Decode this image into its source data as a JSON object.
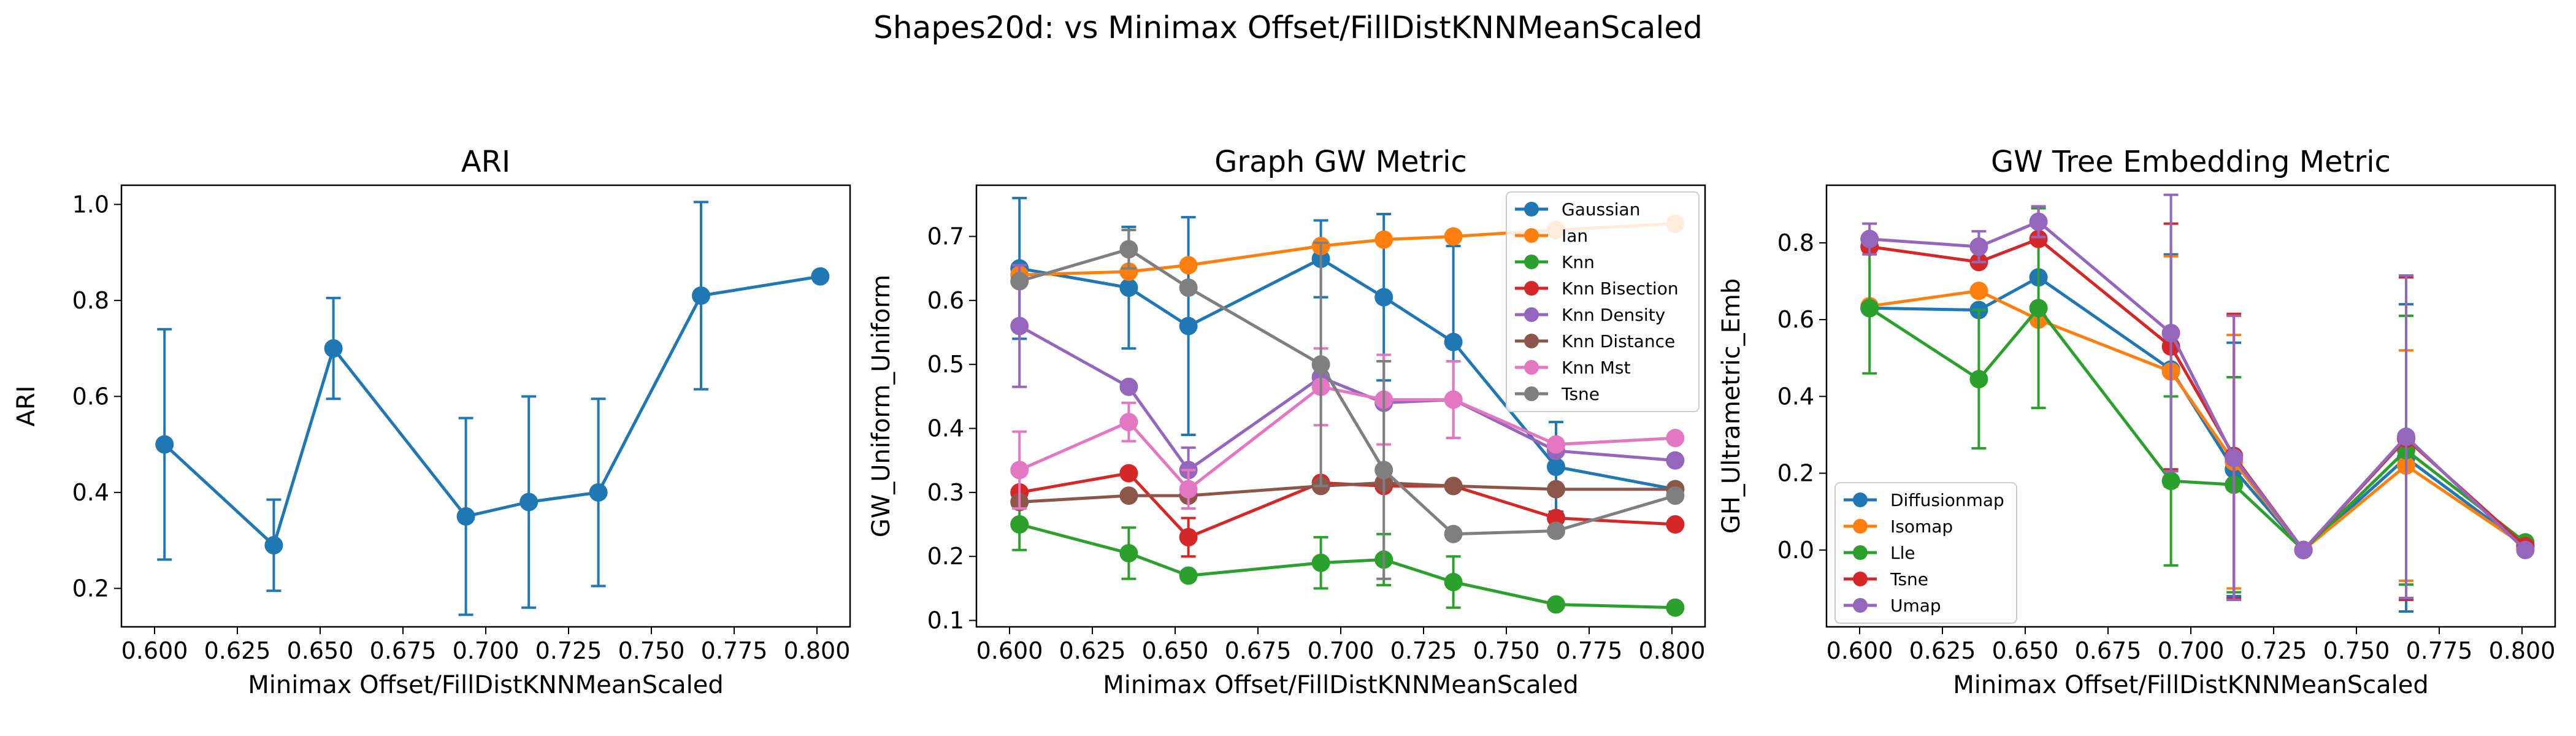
{
  "figure": {
    "suptitle": "Shapes20d: vs Minimax Offset/FillDistKNNMeanScaled"
  },
  "chart_data": [
    {
      "type": "line",
      "title": "ARI",
      "xlabel": "Minimax Offset/FillDistKNNMeanScaled",
      "ylabel": "ARI",
      "xlim": [
        0.59,
        0.81
      ],
      "ylim": [
        0.12,
        1.04
      ],
      "xticks": [
        0.6,
        0.625,
        0.65,
        0.675,
        0.7,
        0.725,
        0.75,
        0.775,
        0.8
      ],
      "xtick_labels": [
        "0.600",
        "0.625",
        "0.650",
        "0.675",
        "0.700",
        "0.725",
        "0.750",
        "0.775",
        "0.800"
      ],
      "yticks": [
        0.2,
        0.4,
        0.6,
        0.8,
        1.0
      ],
      "ytick_labels": [
        "0.2",
        "0.4",
        "0.6",
        "0.8",
        "1.0"
      ],
      "grid": false,
      "legend": null,
      "x": [
        0.603,
        0.636,
        0.654,
        0.694,
        0.713,
        0.734,
        0.765,
        0.801
      ],
      "series": [
        {
          "color": "#1f77b4",
          "values": [
            0.5,
            0.29,
            0.7,
            0.35,
            0.38,
            0.4,
            0.81,
            0.85
          ],
          "err": [
            0.24,
            0.095,
            0.105,
            0.205,
            0.22,
            0.195,
            0.195,
            0
          ]
        }
      ]
    },
    {
      "type": "line",
      "title": "Graph GW Metric",
      "xlabel": "Minimax Offset/FillDistKNNMeanScaled",
      "ylabel": "GW_Uniform_Uniform",
      "xlim": [
        0.59,
        0.81
      ],
      "ylim": [
        0.09,
        0.78
      ],
      "xticks": [
        0.6,
        0.625,
        0.65,
        0.675,
        0.7,
        0.725,
        0.75,
        0.775,
        0.8
      ],
      "xtick_labels": [
        "0.600",
        "0.625",
        "0.650",
        "0.675",
        "0.700",
        "0.725",
        "0.750",
        "0.775",
        "0.800"
      ],
      "yticks": [
        0.1,
        0.2,
        0.3,
        0.4,
        0.5,
        0.6,
        0.7
      ],
      "ytick_labels": [
        "0.1",
        "0.2",
        "0.3",
        "0.4",
        "0.5",
        "0.6",
        "0.7"
      ],
      "grid": false,
      "legend": "top-right",
      "x": [
        0.603,
        0.636,
        0.654,
        0.694,
        0.713,
        0.734,
        0.765,
        0.801
      ],
      "series": [
        {
          "name": "Gaussian",
          "color": "#1f77b4",
          "values": [
            0.65,
            0.62,
            0.56,
            0.665,
            0.605,
            0.535,
            0.34,
            0.305
          ],
          "err": [
            0.11,
            0.095,
            0.17,
            0.06,
            0.13,
            0.15,
            0.07,
            0
          ]
        },
        {
          "name": "Ian",
          "color": "#ff7f0e",
          "values": [
            0.64,
            0.645,
            0.655,
            0.685,
            0.695,
            0.7,
            0.71,
            0.72
          ],
          "err": [
            0,
            0,
            0,
            0,
            0,
            0,
            0,
            0
          ]
        },
        {
          "name": "Knn",
          "color": "#2ca02c",
          "values": [
            0.25,
            0.205,
            0.17,
            0.19,
            0.195,
            0.16,
            0.125,
            0.12
          ],
          "err": [
            0.04,
            0.04,
            0,
            0.04,
            0.04,
            0.04,
            0,
            0
          ]
        },
        {
          "name": "Knn Bisection",
          "color": "#d62728",
          "values": [
            0.3,
            0.33,
            0.23,
            0.315,
            0.31,
            0.31,
            0.26,
            0.25
          ],
          "err": [
            0,
            0,
            0.03,
            0,
            0,
            0,
            0,
            0
          ]
        },
        {
          "name": "Knn Density",
          "color": "#9467bd",
          "values": [
            0.56,
            0.465,
            0.335,
            0.48,
            0.44,
            0.445,
            0.365,
            0.35
          ],
          "err": [
            0.095,
            0,
            0.035,
            0,
            0,
            0,
            0,
            0
          ]
        },
        {
          "name": "Knn Distance",
          "color": "#8c564b",
          "values": [
            0.285,
            0.295,
            0.295,
            0.31,
            0.315,
            0.31,
            0.305,
            0.305
          ],
          "err": [
            0,
            0,
            0,
            0,
            0,
            0,
            0,
            0
          ]
        },
        {
          "name": "Knn Mst",
          "color": "#e377c2",
          "values": [
            0.335,
            0.41,
            0.305,
            0.465,
            0.445,
            0.445,
            0.375,
            0.385
          ],
          "err": [
            0.06,
            0.03,
            0.03,
            0.06,
            0.07,
            0.06,
            0,
            0
          ]
        },
        {
          "name": "Tsne",
          "color": "#7f7f7f",
          "values": [
            0.63,
            0.68,
            0.62,
            0.5,
            0.335,
            0.235,
            0.24,
            0.295
          ],
          "err": [
            0,
            0.03,
            0,
            0.19,
            0.17,
            0,
            0,
            0
          ]
        }
      ]
    },
    {
      "type": "line",
      "title": "GW Tree Embedding Metric",
      "xlabel": "Minimax Offset/FillDistKNNMeanScaled",
      "ylabel": "GH_Ultrametric_Emb",
      "xlim": [
        0.59,
        0.81
      ],
      "ylim": [
        -0.2,
        0.95
      ],
      "xticks": [
        0.6,
        0.625,
        0.65,
        0.675,
        0.7,
        0.725,
        0.75,
        0.775,
        0.8
      ],
      "xtick_labels": [
        "0.600",
        "0.625",
        "0.650",
        "0.675",
        "0.700",
        "0.725",
        "0.750",
        "0.775",
        "0.800"
      ],
      "yticks": [
        0.0,
        0.2,
        0.4,
        0.6,
        0.8
      ],
      "ytick_labels": [
        "0.0",
        "0.2",
        "0.4",
        "0.6",
        "0.8"
      ],
      "grid": false,
      "legend": "bottom-left",
      "x": [
        0.603,
        0.636,
        0.654,
        0.694,
        0.713,
        0.734,
        0.765,
        0.801
      ],
      "series": [
        {
          "name": "Diffusionmap",
          "color": "#1f77b4",
          "values": [
            0.63,
            0.625,
            0.71,
            0.47,
            0.21,
            0.0,
            0.24,
            0.01
          ],
          "err": [
            0,
            0,
            0,
            0.3,
            0.33,
            0,
            0.4,
            0
          ]
        },
        {
          "name": "Isomap",
          "color": "#ff7f0e",
          "values": [
            0.635,
            0.675,
            0.6,
            0.465,
            0.23,
            0.0,
            0.22,
            0.01
          ],
          "err": [
            0,
            0,
            0,
            0.3,
            0.33,
            0,
            0.3,
            0
          ]
        },
        {
          "name": "Lle",
          "color": "#2ca02c",
          "values": [
            0.63,
            0.445,
            0.63,
            0.18,
            0.17,
            0.0,
            0.26,
            0.02
          ],
          "err": [
            0.17,
            0.18,
            0.26,
            0.22,
            0.28,
            0,
            0.35,
            0
          ]
        },
        {
          "name": "Tsne",
          "color": "#d62728",
          "values": [
            0.79,
            0.75,
            0.81,
            0.53,
            0.245,
            0.0,
            0.29,
            0.01
          ],
          "err": [
            0,
            0,
            0,
            0.32,
            0.37,
            0,
            0.42,
            0
          ]
        },
        {
          "name": "Umap",
          "color": "#9467bd",
          "values": [
            0.81,
            0.79,
            0.855,
            0.565,
            0.24,
            0.0,
            0.295,
            0.0
          ],
          "err": [
            0.04,
            0.04,
            0.04,
            0.36,
            0.37,
            0,
            0.42,
            0
          ]
        }
      ]
    }
  ]
}
